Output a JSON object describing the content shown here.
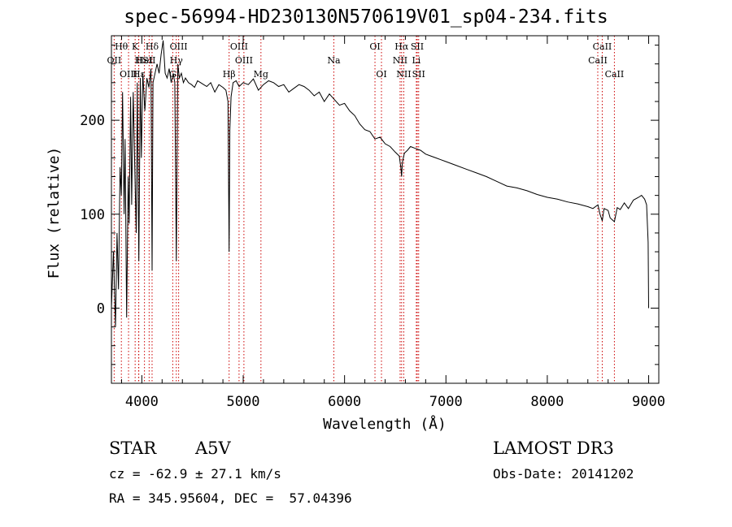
{
  "chart_data": {
    "type": "line",
    "title": "spec-56994-HD230130N570619V01_sp04-234.fits",
    "xlabel": "Wavelength (Å)",
    "ylabel": "Flux (relative)",
    "xlim": [
      3700,
      9100
    ],
    "ylim": [
      -80,
      290
    ],
    "xticks": [
      4000,
      5000,
      6000,
      7000,
      8000,
      9000
    ],
    "yticks": [
      0,
      100,
      200
    ],
    "grid": false,
    "series": [
      {
        "name": "flux",
        "x": [
          3700,
          3720,
          3740,
          3755,
          3770,
          3785,
          3798,
          3810,
          3825,
          3835,
          3850,
          3865,
          3875,
          3889,
          3900,
          3915,
          3930,
          3945,
          3955,
          3970,
          3985,
          3995,
          4010,
          4030,
          4050,
          4070,
          4090,
          4101,
          4110,
          4130,
          4150,
          4170,
          4190,
          4210,
          4230,
          4250,
          4270,
          4290,
          4310,
          4325,
          4340,
          4355,
          4370,
          4390,
          4410,
          4430,
          4460,
          4490,
          4520,
          4550,
          4580,
          4610,
          4640,
          4680,
          4720,
          4760,
          4800,
          4830,
          4850,
          4861,
          4868,
          4880,
          4900,
          4930,
          4960,
          5000,
          5050,
          5100,
          5150,
          5200,
          5250,
          5300,
          5350,
          5400,
          5450,
          5500,
          5550,
          5600,
          5650,
          5700,
          5750,
          5800,
          5850,
          5900,
          5950,
          6000,
          6050,
          6100,
          6150,
          6200,
          6250,
          6300,
          6350,
          6400,
          6450,
          6500,
          6540,
          6555,
          6563,
          6570,
          6590,
          6620,
          6650,
          6700,
          6750,
          6800,
          6850,
          6900,
          6950,
          7000,
          7100,
          7200,
          7300,
          7400,
          7500,
          7600,
          7700,
          7800,
          7900,
          8000,
          8100,
          8200,
          8300,
          8400,
          8450,
          8500,
          8520,
          8542,
          8560,
          8600,
          8620,
          8662,
          8690,
          8720,
          8760,
          8800,
          8850,
          8900,
          8930,
          8960,
          8980,
          8995,
          9000
        ],
        "values": [
          0,
          60,
          -20,
          80,
          20,
          150,
          120,
          230,
          100,
          180,
          -10,
          140,
          90,
          225,
          110,
          230,
          150,
          80,
          240,
          50,
          245,
          160,
          250,
          210,
          245,
          235,
          255,
          40,
          240,
          250,
          260,
          250,
          270,
          285,
          250,
          245,
          255,
          240,
          250,
          240,
          50,
          260,
          245,
          250,
          240,
          245,
          240,
          238,
          235,
          242,
          240,
          238,
          236,
          240,
          230,
          238,
          235,
          232,
          220,
          60,
          190,
          225,
          240,
          242,
          236,
          240,
          238,
          244,
          232,
          238,
          242,
          240,
          236,
          238,
          230,
          234,
          238,
          236,
          232,
          226,
          230,
          220,
          228,
          222,
          216,
          218,
          210,
          205,
          196,
          190,
          188,
          180,
          182,
          175,
          172,
          166,
          162,
          150,
          140,
          155,
          165,
          168,
          172,
          170,
          168,
          164,
          162,
          160,
          158,
          156,
          152,
          148,
          144,
          140,
          135,
          130,
          128,
          125,
          121,
          118,
          116,
          113,
          111,
          108,
          106,
          110,
          100,
          93,
          106,
          104,
          96,
          92,
          107,
          105,
          112,
          106,
          115,
          118,
          120,
          116,
          110,
          70,
          0
        ]
      }
    ],
    "lines": [
      {
        "name": "Hθ",
        "wave": 3798,
        "row": 1
      },
      {
        "name": "OII",
        "wave": 3727,
        "row": 2
      },
      {
        "name": "OIII",
        "wave": 3869,
        "row": 3
      },
      {
        "name": "K",
        "wave": 3934,
        "row": 1
      },
      {
        "name": "H",
        "wave": 3968,
        "row": 2
      },
      {
        "name": "Hε",
        "wave": 3970,
        "row": 3
      },
      {
        "name": "HeI",
        "wave": 4026,
        "row": 2
      },
      {
        "name": "Hδ",
        "wave": 4101,
        "row": 1
      },
      {
        "name": "SII",
        "wave": 4072,
        "row": 2
      },
      {
        "name": "OIII",
        "wave": 4363,
        "row": 1
      },
      {
        "name": "Hγ",
        "wave": 4340,
        "row": 2
      },
      {
        "name": "G",
        "wave": 4305,
        "row": 3
      },
      {
        "name": "Hβ",
        "wave": 4861,
        "row": 3
      },
      {
        "name": "OIII",
        "wave": 4959,
        "row": 1
      },
      {
        "name": "OIII",
        "wave": 5007,
        "row": 2
      },
      {
        "name": "Mg",
        "wave": 5175,
        "row": 3
      },
      {
        "name": "Na",
        "wave": 5894,
        "row": 2
      },
      {
        "name": "OI",
        "wave": 6300,
        "row": 1
      },
      {
        "name": "OI",
        "wave": 6364,
        "row": 3
      },
      {
        "name": "Hα",
        "wave": 6563,
        "row": 1
      },
      {
        "name": "NII",
        "wave": 6548,
        "row": 2
      },
      {
        "name": "NII",
        "wave": 6584,
        "row": 3
      },
      {
        "name": "SII",
        "wave": 6717,
        "row": 1
      },
      {
        "name": "Li",
        "wave": 6708,
        "row": 2
      },
      {
        "name": "SII",
        "wave": 6731,
        "row": 3
      },
      {
        "name": "CaII",
        "wave": 8542,
        "row": 1
      },
      {
        "name": "CaII",
        "wave": 8498,
        "row": 2
      },
      {
        "name": "CaII",
        "wave": 8662,
        "row": 3
      }
    ]
  },
  "info": {
    "object_type": "STAR",
    "spectral_class": "A5V",
    "survey": "LAMOST DR3",
    "cz": "cz = -62.9 ± 27.1 km/s",
    "obs_date": "Obs-Date: 20141202",
    "coords": "RA = 345.95604, DEC =  57.04396"
  },
  "colors": {
    "line": "#000000",
    "marker": "#cc0000"
  }
}
